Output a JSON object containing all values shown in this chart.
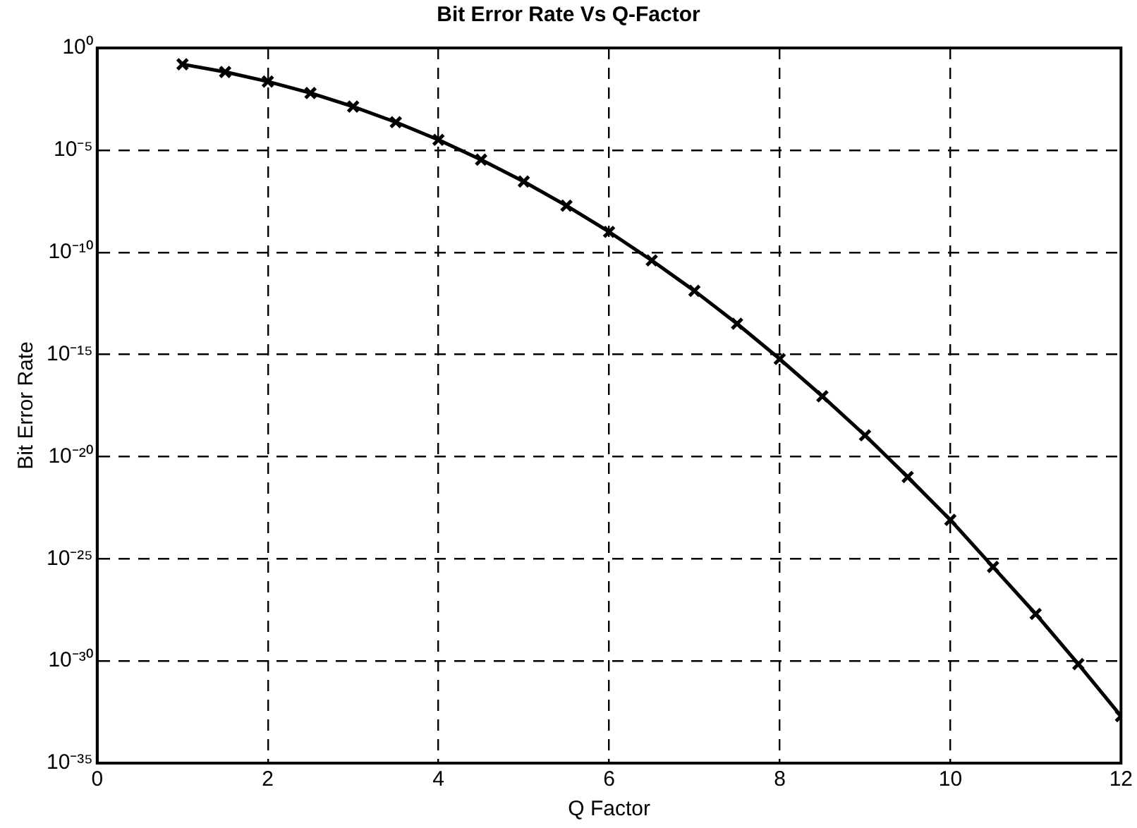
{
  "chart_data": {
    "type": "line",
    "title": "Bit Error Rate Vs Q-Factor",
    "xlabel": "Q Factor",
    "ylabel": "Bit Error Rate",
    "x": [
      1,
      1.5,
      2,
      2.5,
      3,
      3.5,
      4,
      4.5,
      5,
      5.5,
      6,
      6.5,
      7,
      7.5,
      8,
      8.5,
      9,
      9.5,
      10,
      10.5,
      11,
      11.5,
      12
    ],
    "series": [
      {
        "color": "#000000",
        "values": [
          0.159,
          0.0668,
          0.0228,
          0.0062,
          0.00135,
          0.000233,
          3.2e-05,
          3.4e-06,
          2.9e-07,
          1.9e-08,
          1e-09,
          4e-11,
          1.3e-12,
          3.2e-14,
          6e-16,
          9e-18,
          1.1e-19,
          1e-21,
          8e-24,
          4e-26,
          2e-28,
          7e-31,
          2e-33
        ]
      }
    ],
    "xlim": [
      0,
      12
    ],
    "xticks": [
      0,
      2,
      4,
      6,
      8,
      10,
      12
    ],
    "ylim": [
      1e-35,
      1
    ],
    "yticks": [
      {
        "value": 1,
        "label": "10⁰"
      },
      {
        "value": 1e-05,
        "label": "10⁻⁵"
      },
      {
        "value": 1e-10,
        "label": "10⁻¹⁰"
      },
      {
        "value": 1e-15,
        "label": "10⁻¹⁵"
      },
      {
        "value": 1e-20,
        "label": "10⁻²⁰"
      },
      {
        "value": 1e-25,
        "label": "10⁻²⁵"
      },
      {
        "value": 1e-30,
        "label": "10⁻³⁰"
      },
      {
        "value": 1e-35,
        "label": "10⁻³⁵"
      }
    ],
    "log": "y",
    "grid": true,
    "marker": "cross",
    "line_style": "solid"
  }
}
